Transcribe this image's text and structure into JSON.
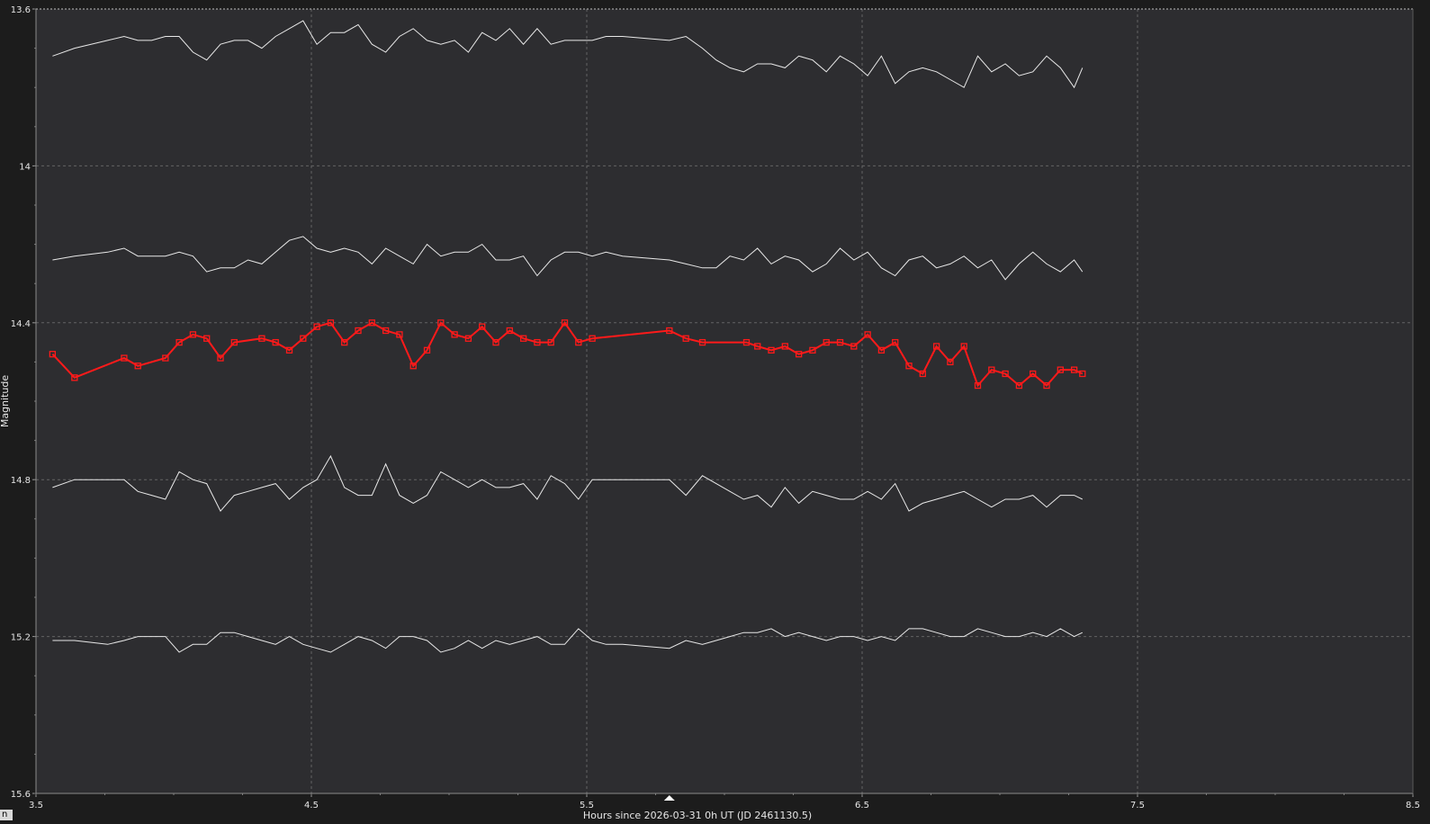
{
  "chart_data": {
    "type": "line",
    "xlabel": "Hours since 2026-03-31 0h UT (JD 2461130.5)",
    "ylabel": "Magnitude",
    "xlim": [
      3.5,
      8.5
    ],
    "ylim": [
      13.6,
      15.6
    ],
    "y_inverted": true,
    "x_ticks": [
      "3.5",
      "4.5",
      "5.5",
      "6.5",
      "7.5",
      "8.5"
    ],
    "y_ticks": [
      "13.6",
      "14",
      "14.4",
      "14.8",
      "15.2",
      "15.6"
    ],
    "grid": true,
    "background_color": "#2d2d30",
    "frame_color": "#1c1c1c",
    "axis_text_color": "#e6e6e6",
    "marker_x": 5.8,
    "series": [
      {
        "color": "#e8e8e8",
        "marker": "none",
        "x": [
          3.56,
          3.64,
          3.76,
          3.82,
          3.87,
          3.92,
          3.97,
          4.02,
          4.07,
          4.12,
          4.17,
          4.22,
          4.27,
          4.32,
          4.37,
          4.42,
          4.47,
          4.52,
          4.57,
          4.62,
          4.67,
          4.72,
          4.77,
          4.82,
          4.87,
          4.92,
          4.97,
          5.02,
          5.07,
          5.12,
          5.17,
          5.22,
          5.27,
          5.32,
          5.37,
          5.42,
          5.47,
          5.52,
          5.57,
          5.63,
          5.8,
          5.86,
          5.92,
          5.97,
          6.02,
          6.07,
          6.12,
          6.17,
          6.22,
          6.27,
          6.32,
          6.37,
          6.42,
          6.47,
          6.52,
          6.57,
          6.62,
          6.67,
          6.72,
          6.77,
          6.82,
          6.87,
          6.92,
          6.97,
          7.02,
          7.07,
          7.12,
          7.17,
          7.22,
          7.27,
          7.3
        ],
        "y": [
          13.72,
          13.7,
          13.68,
          13.67,
          13.68,
          13.68,
          13.67,
          13.67,
          13.71,
          13.73,
          13.69,
          13.68,
          13.68,
          13.7,
          13.67,
          13.65,
          13.63,
          13.69,
          13.66,
          13.66,
          13.64,
          13.69,
          13.71,
          13.67,
          13.65,
          13.68,
          13.69,
          13.68,
          13.71,
          13.66,
          13.68,
          13.65,
          13.69,
          13.65,
          13.69,
          13.68,
          13.68,
          13.68,
          13.67,
          13.67,
          13.68,
          13.67,
          13.7,
          13.73,
          13.75,
          13.76,
          13.74,
          13.74,
          13.75,
          13.72,
          13.73,
          13.76,
          13.72,
          13.74,
          13.77,
          13.72,
          13.79,
          13.76,
          13.75,
          13.76,
          13.78,
          13.8,
          13.72,
          13.76,
          13.74,
          13.77,
          13.76,
          13.72,
          13.75,
          13.8,
          13.75
        ]
      },
      {
        "color": "#e8e8e8",
        "marker": "none",
        "x": [
          3.56,
          3.64,
          3.76,
          3.82,
          3.87,
          3.92,
          3.97,
          4.02,
          4.07,
          4.12,
          4.17,
          4.22,
          4.27,
          4.32,
          4.37,
          4.42,
          4.47,
          4.52,
          4.57,
          4.62,
          4.67,
          4.72,
          4.77,
          4.82,
          4.87,
          4.92,
          4.97,
          5.02,
          5.07,
          5.12,
          5.17,
          5.22,
          5.27,
          5.32,
          5.37,
          5.42,
          5.47,
          5.52,
          5.57,
          5.63,
          5.8,
          5.86,
          5.92,
          5.97,
          6.02,
          6.07,
          6.12,
          6.17,
          6.22,
          6.27,
          6.32,
          6.37,
          6.42,
          6.47,
          6.52,
          6.57,
          6.62,
          6.67,
          6.72,
          6.77,
          6.82,
          6.87,
          6.92,
          6.97,
          7.02,
          7.07,
          7.12,
          7.17,
          7.22,
          7.27,
          7.3
        ],
        "y": [
          14.24,
          14.23,
          14.22,
          14.21,
          14.23,
          14.23,
          14.23,
          14.22,
          14.23,
          14.27,
          14.26,
          14.26,
          14.24,
          14.25,
          14.22,
          14.19,
          14.18,
          14.21,
          14.22,
          14.21,
          14.22,
          14.25,
          14.21,
          14.23,
          14.25,
          14.2,
          14.23,
          14.22,
          14.22,
          14.2,
          14.24,
          14.24,
          14.23,
          14.28,
          14.24,
          14.22,
          14.22,
          14.23,
          14.22,
          14.23,
          14.24,
          14.25,
          14.26,
          14.26,
          14.23,
          14.24,
          14.21,
          14.25,
          14.23,
          14.24,
          14.27,
          14.25,
          14.21,
          14.24,
          14.22,
          14.26,
          14.28,
          14.24,
          14.23,
          14.26,
          14.25,
          14.23,
          14.26,
          14.24,
          14.29,
          14.25,
          14.22,
          14.25,
          14.27,
          14.24,
          14.27
        ]
      },
      {
        "color": "#ff1a1a",
        "marker": "square",
        "x": [
          3.56,
          3.64,
          3.82,
          3.87,
          3.97,
          4.02,
          4.07,
          4.12,
          4.17,
          4.22,
          4.32,
          4.37,
          4.42,
          4.47,
          4.52,
          4.57,
          4.62,
          4.67,
          4.72,
          4.77,
          4.82,
          4.87,
          4.92,
          4.97,
          5.02,
          5.07,
          5.12,
          5.17,
          5.22,
          5.27,
          5.32,
          5.37,
          5.42,
          5.47,
          5.52,
          5.8,
          5.86,
          5.92,
          6.08,
          6.12,
          6.17,
          6.22,
          6.27,
          6.32,
          6.37,
          6.42,
          6.47,
          6.52,
          6.57,
          6.62,
          6.67,
          6.72,
          6.77,
          6.82,
          6.87,
          6.92,
          6.97,
          7.02,
          7.07,
          7.12,
          7.17,
          7.22,
          7.27,
          7.3
        ],
        "y": [
          14.48,
          14.54,
          14.49,
          14.51,
          14.49,
          14.45,
          14.43,
          14.44,
          14.49,
          14.45,
          14.44,
          14.45,
          14.47,
          14.44,
          14.41,
          14.4,
          14.45,
          14.42,
          14.4,
          14.42,
          14.43,
          14.51,
          14.47,
          14.4,
          14.43,
          14.44,
          14.41,
          14.45,
          14.42,
          14.44,
          14.45,
          14.45,
          14.4,
          14.45,
          14.44,
          14.42,
          14.44,
          14.45,
          14.45,
          14.46,
          14.47,
          14.46,
          14.48,
          14.47,
          14.45,
          14.45,
          14.46,
          14.43,
          14.47,
          14.45,
          14.51,
          14.53,
          14.46,
          14.5,
          14.46,
          14.56,
          14.52,
          14.53,
          14.56,
          14.53,
          14.56,
          14.52,
          14.52,
          14.53
        ]
      },
      {
        "color": "#e8e8e8",
        "marker": "none",
        "x": [
          3.56,
          3.64,
          3.76,
          3.82,
          3.87,
          3.92,
          3.97,
          4.02,
          4.07,
          4.12,
          4.17,
          4.22,
          4.27,
          4.32,
          4.37,
          4.42,
          4.47,
          4.52,
          4.57,
          4.62,
          4.67,
          4.72,
          4.77,
          4.82,
          4.87,
          4.92,
          4.97,
          5.02,
          5.07,
          5.12,
          5.17,
          5.22,
          5.27,
          5.32,
          5.37,
          5.42,
          5.47,
          5.52,
          5.57,
          5.63,
          5.8,
          5.86,
          5.92,
          5.97,
          6.02,
          6.07,
          6.12,
          6.17,
          6.22,
          6.27,
          6.32,
          6.37,
          6.42,
          6.47,
          6.52,
          6.57,
          6.62,
          6.67,
          6.72,
          6.77,
          6.82,
          6.87,
          6.92,
          6.97,
          7.02,
          7.07,
          7.12,
          7.17,
          7.22,
          7.27,
          7.3
        ],
        "y": [
          14.82,
          14.8,
          14.8,
          14.8,
          14.83,
          14.84,
          14.85,
          14.78,
          14.8,
          14.81,
          14.88,
          14.84,
          14.83,
          14.82,
          14.81,
          14.85,
          14.82,
          14.8,
          14.74,
          14.82,
          14.84,
          14.84,
          14.76,
          14.84,
          14.86,
          14.84,
          14.78,
          14.8,
          14.82,
          14.8,
          14.82,
          14.82,
          14.81,
          14.85,
          14.79,
          14.81,
          14.85,
          14.8,
          14.8,
          14.8,
          14.8,
          14.84,
          14.79,
          14.81,
          14.83,
          14.85,
          14.84,
          14.87,
          14.82,
          14.86,
          14.83,
          14.84,
          14.85,
          14.85,
          14.83,
          14.85,
          14.81,
          14.88,
          14.86,
          14.85,
          14.84,
          14.83,
          14.85,
          14.87,
          14.85,
          14.85,
          14.84,
          14.87,
          14.84,
          14.84,
          14.85
        ]
      },
      {
        "color": "#e8e8e8",
        "marker": "none",
        "x": [
          3.56,
          3.64,
          3.76,
          3.82,
          3.87,
          3.92,
          3.97,
          4.02,
          4.07,
          4.12,
          4.17,
          4.22,
          4.27,
          4.32,
          4.37,
          4.42,
          4.47,
          4.52,
          4.57,
          4.62,
          4.67,
          4.72,
          4.77,
          4.82,
          4.87,
          4.92,
          4.97,
          5.02,
          5.07,
          5.12,
          5.17,
          5.22,
          5.27,
          5.32,
          5.37,
          5.42,
          5.47,
          5.52,
          5.57,
          5.63,
          5.8,
          5.86,
          5.92,
          5.97,
          6.02,
          6.07,
          6.12,
          6.17,
          6.22,
          6.27,
          6.32,
          6.37,
          6.42,
          6.47,
          6.52,
          6.57,
          6.62,
          6.67,
          6.72,
          6.77,
          6.82,
          6.87,
          6.92,
          6.97,
          7.02,
          7.07,
          7.12,
          7.17,
          7.22,
          7.27,
          7.3
        ],
        "y": [
          15.21,
          15.21,
          15.22,
          15.21,
          15.2,
          15.2,
          15.2,
          15.24,
          15.22,
          15.22,
          15.19,
          15.19,
          15.2,
          15.21,
          15.22,
          15.2,
          15.22,
          15.23,
          15.24,
          15.22,
          15.2,
          15.21,
          15.23,
          15.2,
          15.2,
          15.21,
          15.24,
          15.23,
          15.21,
          15.23,
          15.21,
          15.22,
          15.21,
          15.2,
          15.22,
          15.22,
          15.18,
          15.21,
          15.22,
          15.22,
          15.23,
          15.21,
          15.22,
          15.21,
          15.2,
          15.19,
          15.19,
          15.18,
          15.2,
          15.19,
          15.2,
          15.21,
          15.2,
          15.2,
          15.21,
          15.2,
          15.21,
          15.18,
          15.18,
          15.19,
          15.2,
          15.2,
          15.18,
          15.19,
          15.2,
          15.2,
          15.19,
          15.2,
          15.18,
          15.2,
          15.19
        ]
      }
    ]
  }
}
